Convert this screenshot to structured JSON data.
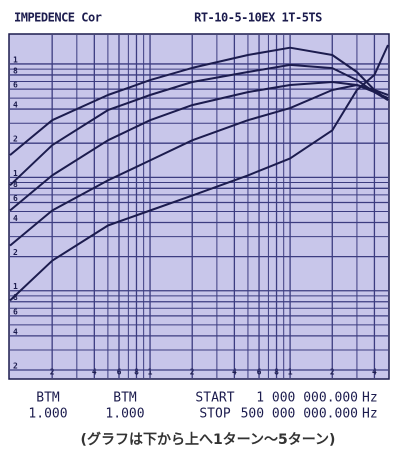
{
  "chart_data": {
    "type": "line",
    "header": [
      "IMPEDENCE Cor",
      "RT-10-5-10EX  1T-5TS"
    ],
    "x": [
      1000000,
      2000000,
      5000000,
      10000000,
      20000000,
      50000000,
      100000000,
      200000000,
      300000000,
      400000000,
      500000000
    ],
    "series": [
      {
        "color": "#1c1c4e",
        "values": [
          15.7,
          31.9,
          53.2,
          72.1,
          92.2,
          120,
          139,
          120,
          85,
          58.9,
          48
        ]
      },
      {
        "color": "#1c1c4e",
        "values": [
          8.5,
          19.2,
          39.2,
          53.2,
          69.3,
          85,
          98,
          92,
          72.1,
          56.5,
          48
        ]
      },
      {
        "color": "#1c1c4e",
        "values": [
          5.1,
          10.4,
          21.2,
          31.9,
          43.4,
          56.5,
          65.2,
          69.3,
          65.2,
          56.5,
          50
        ]
      },
      {
        "color": "#1c1c4e",
        "values": [
          2.5,
          5.1,
          9.4,
          14.1,
          21.2,
          31.9,
          40.8,
          58.9,
          65.2,
          58.9,
          53.2
        ]
      },
      {
        "color": "#1c1c4e",
        "values": [
          0.82,
          1.84,
          3.76,
          5.1,
          6.9,
          10.4,
          14.7,
          26,
          58.9,
          80,
          147
        ]
      }
    ],
    "xlog": true,
    "ylog": true,
    "xlim": [
      1000000,
      500000000
    ],
    "ylim": [
      0.17,
      180
    ],
    "xticks": [
      {
        "value": 2000000,
        "label": "2"
      },
      {
        "value": 4000000,
        "label": "4"
      },
      {
        "value": 6000000,
        "label": "6"
      },
      {
        "value": 8000000,
        "label": "8"
      },
      {
        "value": 10000000,
        "label": "1"
      },
      {
        "value": 20000000,
        "label": "2"
      },
      {
        "value": 40000000,
        "label": "4"
      },
      {
        "value": 60000000,
        "label": "6"
      },
      {
        "value": 80000000,
        "label": "8"
      },
      {
        "value": 100000000,
        "label": "1"
      },
      {
        "value": 200000000,
        "label": "2"
      },
      {
        "value": 400000000,
        "label": "4"
      }
    ],
    "xminor": [
      3000000,
      5000000,
      7000000,
      9000000,
      30000000,
      50000000,
      70000000,
      90000000,
      300000000
    ],
    "yticks": [
      {
        "value": 0.2,
        "label": "2"
      },
      {
        "value": 0.4,
        "label": "4"
      },
      {
        "value": 0.6,
        "label": "6"
      },
      {
        "value": 0.8,
        "label": "8"
      },
      1,
      {
        "value": 2,
        "label": "2"
      },
      {
        "value": 4,
        "label": "4"
      },
      {
        "value": 6,
        "label": "6"
      },
      {
        "value": 8,
        "label": "8"
      },
      {
        "value": 10,
        "label": "1"
      },
      {
        "value": 20,
        "label": "2"
      },
      {
        "value": 40,
        "label": "4"
      },
      {
        "value": 60,
        "label": "6"
      },
      {
        "value": 80,
        "label": "8"
      },
      {
        "value": 100,
        "label": "1"
      }
    ],
    "yminor": [
      0.3,
      0.5,
      0.7,
      0.9,
      3,
      5,
      7,
      9,
      30,
      50,
      70,
      90
    ],
    "grid": true,
    "footer": [
      [
        "BTM",
        "BTM",
        "START",
        "1 000 000.000",
        "Hz"
      ],
      [
        "1.000",
        "1.000",
        "STOP",
        "500 000 000.000",
        "Hz"
      ]
    ],
    "caption": "(グラフは下から上へ1ターン～5ターン)"
  }
}
